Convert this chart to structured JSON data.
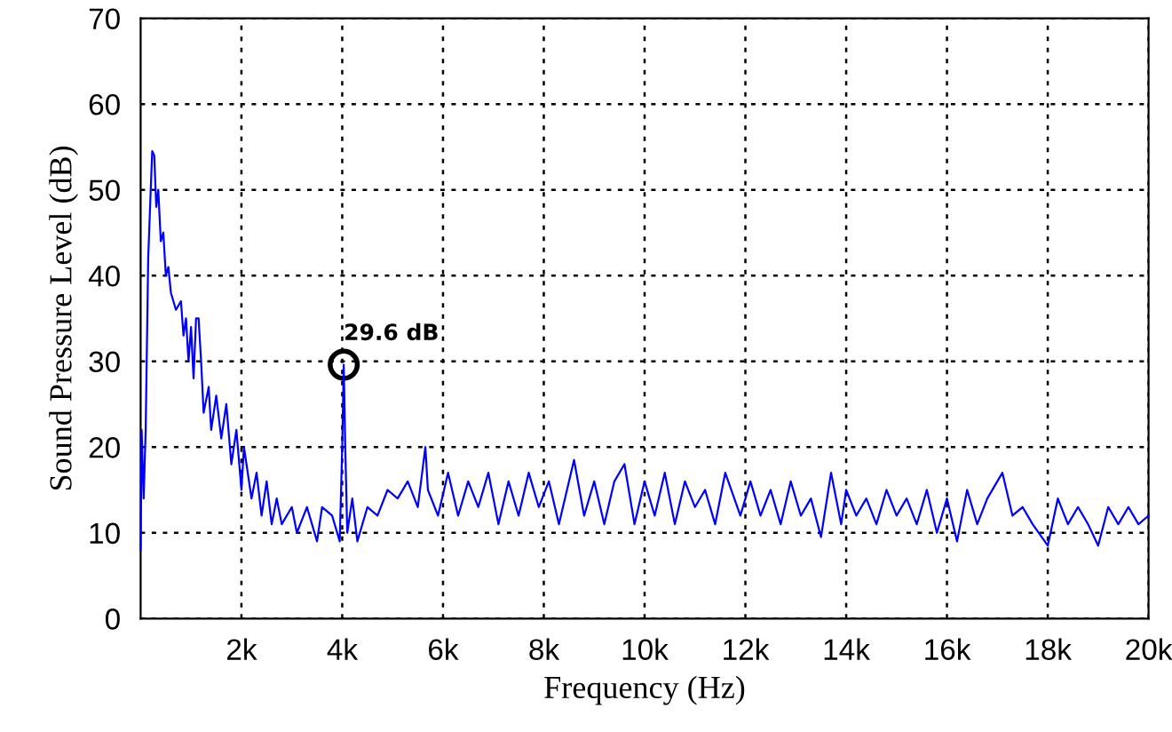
{
  "chart_data": {
    "type": "line",
    "xlabel": "Frequency (Hz)",
    "ylabel": "Sound Pressure Level (dB)",
    "xlim": [
      0,
      20000
    ],
    "ylim": [
      0,
      70
    ],
    "xticks": [
      {
        "value": 2000,
        "label": "2k"
      },
      {
        "value": 4000,
        "label": "4k"
      },
      {
        "value": 6000,
        "label": "6k"
      },
      {
        "value": 8000,
        "label": "8k"
      },
      {
        "value": 10000,
        "label": "10k"
      },
      {
        "value": 12000,
        "label": "12k"
      },
      {
        "value": 14000,
        "label": "14k"
      },
      {
        "value": 16000,
        "label": "16k"
      },
      {
        "value": 18000,
        "label": "18k"
      },
      {
        "value": 20000,
        "label": "20k"
      }
    ],
    "yticks": [
      0,
      10,
      20,
      30,
      40,
      50,
      60,
      70
    ],
    "grid": true,
    "line_style": "solid",
    "marker": "none",
    "annotations": [
      {
        "text": "29.6 dB",
        "x": 4030,
        "y": 29.6
      }
    ],
    "series": [
      {
        "color": "#0000ff",
        "x": [
          0,
          20,
          60,
          100,
          150,
          200,
          230,
          270,
          310,
          350,
          400,
          450,
          500,
          550,
          600,
          700,
          800,
          850,
          900,
          950,
          1000,
          1050,
          1100,
          1150,
          1200,
          1250,
          1350,
          1400,
          1500,
          1600,
          1700,
          1800,
          1900,
          2000,
          2050,
          2100,
          2200,
          2300,
          2400,
          2500,
          2600,
          2700,
          2800,
          3000,
          3100,
          3300,
          3500,
          3600,
          3800,
          3950,
          4000,
          4030,
          4060,
          4100,
          4200,
          4300,
          4500,
          4700,
          4900,
          5100,
          5300,
          5500,
          5650,
          5700,
          5900,
          6100,
          6300,
          6500,
          6700,
          6900,
          7100,
          7300,
          7500,
          7700,
          7900,
          8100,
          8300,
          8600,
          8800,
          9000,
          9200,
          9400,
          9600,
          9800,
          10000,
          10200,
          10400,
          10600,
          10800,
          11000,
          11200,
          11400,
          11600,
          11900,
          12100,
          12300,
          12500,
          12700,
          12900,
          13100,
          13300,
          13500,
          13700,
          13900,
          14000,
          14200,
          14400,
          14600,
          14800,
          15000,
          15200,
          15400,
          15600,
          15800,
          16000,
          16200,
          16400,
          16600,
          16800,
          17100,
          17300,
          17500,
          17700,
          18000,
          18200,
          18400,
          18600,
          18800,
          19000,
          19200,
          19400,
          19600,
          19800,
          20000
        ],
        "values": [
          8,
          22,
          14,
          22,
          42,
          50,
          54.5,
          54,
          48,
          50,
          44,
          45,
          40,
          41,
          38,
          36,
          37,
          33,
          35,
          30,
          34,
          28,
          35,
          35,
          30,
          24,
          27,
          22,
          26,
          21,
          25,
          18,
          22,
          15,
          20,
          18,
          14,
          17,
          12,
          16,
          11,
          14,
          11,
          13,
          10,
          13,
          9,
          13,
          12,
          9,
          20,
          29.6,
          20,
          10,
          14,
          9,
          13,
          12,
          15,
          14,
          16,
          13,
          20,
          15,
          12,
          17,
          12,
          16,
          13,
          17,
          11,
          16,
          12,
          17,
          13,
          16,
          11,
          18.5,
          12,
          16,
          11,
          16,
          18,
          11,
          16,
          12,
          17,
          11,
          16,
          13,
          15,
          11,
          17,
          12,
          16,
          12,
          15,
          11,
          16,
          12,
          14,
          9.5,
          17,
          11,
          15,
          12,
          14,
          11,
          15,
          12,
          14,
          11,
          15,
          10,
          14,
          9,
          15,
          11,
          14,
          17,
          12,
          13,
          11,
          8.5,
          14,
          11,
          13,
          11,
          8.5,
          13,
          11,
          13,
          11,
          12
        ]
      }
    ]
  }
}
